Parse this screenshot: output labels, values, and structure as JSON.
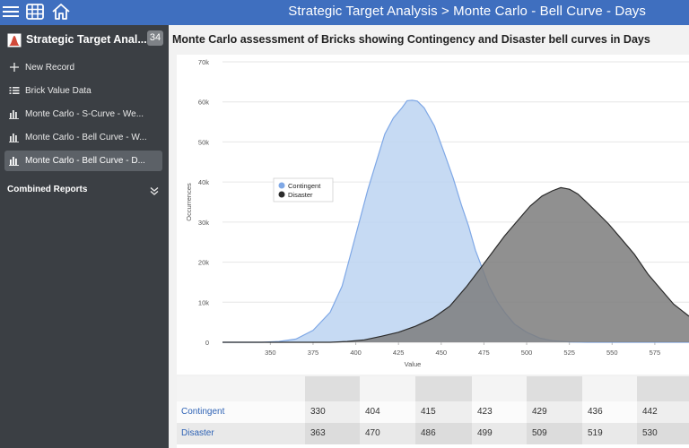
{
  "app": {
    "breadcrumb": "Strategic Target Analysis > Monte Carlo - Bell Curve - Days"
  },
  "sidebar": {
    "title": "Strategic Target Anal...",
    "badge": "34",
    "items": [
      {
        "label": "New Record",
        "icon": "plus-icon"
      },
      {
        "label": "Brick Value Data",
        "icon": "list-icon"
      },
      {
        "label": "Monte Carlo - S-Curve - We...",
        "icon": "bar-chart-icon"
      },
      {
        "label": "Monte Carlo - Bell Curve - W...",
        "icon": "bar-chart-icon"
      },
      {
        "label": "Monte Carlo - Bell Curve - D...",
        "icon": "bar-chart-icon",
        "active": true
      }
    ],
    "combined_reports": "Combined Reports"
  },
  "main": {
    "title": "Monte Carlo assessment of Bricks showing Contingency and Disaster bell curves in Days"
  },
  "chart_data": {
    "type": "area",
    "xlabel": "Value",
    "ylabel": "Occurrences",
    "xlim": [
      322,
      595
    ],
    "ylim": [
      0,
      70000
    ],
    "x_ticks": [
      "350",
      "375",
      "400",
      "425",
      "450",
      "475",
      "500",
      "525",
      "550",
      "575"
    ],
    "y_ticks": [
      "0",
      "10k",
      "20k",
      "30k",
      "40k",
      "50k",
      "60k",
      "70k"
    ],
    "legend_position": "top-left",
    "grid": true,
    "series": [
      {
        "name": "Contingent",
        "color": "#7fa8e6",
        "fill": "#bcd3f1",
        "points": [
          [
            322,
            0
          ],
          [
            345,
            0
          ],
          [
            355,
            200
          ],
          [
            365,
            800
          ],
          [
            375,
            3000
          ],
          [
            385,
            7500
          ],
          [
            392,
            14000
          ],
          [
            397,
            22000
          ],
          [
            402,
            30000
          ],
          [
            407,
            38000
          ],
          [
            412,
            45000
          ],
          [
            417,
            52000
          ],
          [
            422,
            56000
          ],
          [
            427,
            58500
          ],
          [
            430,
            60300
          ],
          [
            433,
            60400
          ],
          [
            436,
            60200
          ],
          [
            440,
            58500
          ],
          [
            446,
            54000
          ],
          [
            452,
            47000
          ],
          [
            457,
            41000
          ],
          [
            462,
            34000
          ],
          [
            466,
            29000
          ],
          [
            470,
            23000
          ],
          [
            474,
            18500
          ],
          [
            478,
            14000
          ],
          [
            483,
            10000
          ],
          [
            488,
            7000
          ],
          [
            493,
            4500
          ],
          [
            500,
            2500
          ],
          [
            508,
            1000
          ],
          [
            515,
            400
          ],
          [
            525,
            100
          ],
          [
            535,
            0
          ],
          [
            595,
            0
          ]
        ]
      },
      {
        "name": "Disaster",
        "color": "#2b2b2b",
        "fill": "#7c7c7c",
        "points": [
          [
            322,
            0
          ],
          [
            385,
            0
          ],
          [
            395,
            200
          ],
          [
            405,
            600
          ],
          [
            415,
            1500
          ],
          [
            425,
            2500
          ],
          [
            435,
            4000
          ],
          [
            445,
            6000
          ],
          [
            455,
            9000
          ],
          [
            465,
            14000
          ],
          [
            473,
            18500
          ],
          [
            480,
            22500
          ],
          [
            487,
            26500
          ],
          [
            495,
            30500
          ],
          [
            502,
            34000
          ],
          [
            509,
            36500
          ],
          [
            515,
            37800
          ],
          [
            520,
            38600
          ],
          [
            525,
            38200
          ],
          [
            530,
            37000
          ],
          [
            535,
            35000
          ],
          [
            541,
            32500
          ],
          [
            548,
            29500
          ],
          [
            555,
            26000
          ],
          [
            563,
            22000
          ],
          [
            571,
            17000
          ],
          [
            579,
            13000
          ],
          [
            586,
            9500
          ],
          [
            595,
            6500
          ]
        ]
      }
    ]
  },
  "table": {
    "rows": [
      {
        "label": "Contingent",
        "values": [
          "330",
          "404",
          "415",
          "423",
          "429",
          "436",
          "442"
        ]
      },
      {
        "label": "Disaster",
        "values": [
          "363",
          "470",
          "486",
          "499",
          "509",
          "519",
          "530"
        ]
      }
    ]
  },
  "colors": {
    "topbar": "#3f6fbf",
    "sidebar": "#3b3f44",
    "sidebar_active": "#5c6167",
    "link": "#2f63b5"
  }
}
